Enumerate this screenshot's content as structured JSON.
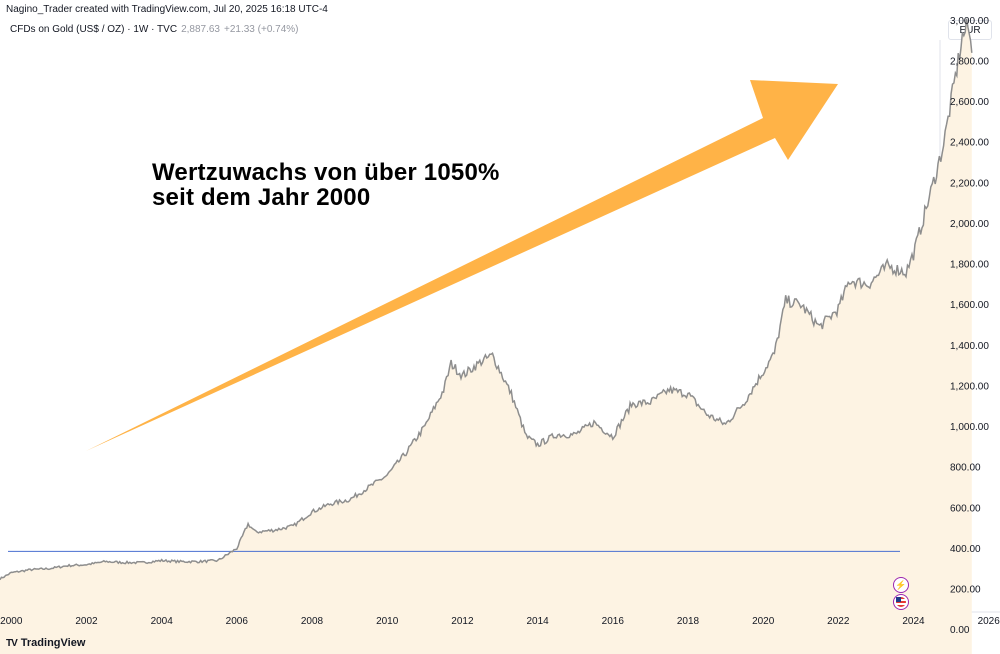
{
  "header": {
    "attribution": "Nagino_Trader created with TradingView.com, Jul 20, 2025 16:18 UTC-4",
    "symbol": "CFDs on Gold (US$ / OZ) · 1W · TVC",
    "price": "2,887.63",
    "change": "+21.33 (+0.74%)",
    "currency": "EUR"
  },
  "annotation": {
    "headline": "Wertzuwachs von über 1050%\nseit dem Jahr 2000"
  },
  "footer": {
    "brand": "TradingView",
    "logo": "TV"
  },
  "events": {
    "lightning_icon": "lightning-icon",
    "flag_icon": "us-flag-icon"
  },
  "colors": {
    "price_line": "#8e8e8e",
    "area_fill": "#fdf3e3",
    "reference_line": "#4a6fd1",
    "arrow": "#ffb347",
    "event_border": "#9c27b0"
  },
  "chart_data": {
    "type": "area",
    "title": "CFDs on Gold (US$ / OZ) · 1W · TVC",
    "xlabel": "",
    "ylabel": "",
    "xlim": [
      1999.7,
      2026.3
    ],
    "ylim": [
      -120,
      3100
    ],
    "x_ticks": [
      2000,
      2002,
      2004,
      2006,
      2008,
      2010,
      2012,
      2014,
      2016,
      2018,
      2020,
      2022,
      2024,
      2026
    ],
    "y_ticks": [
      "0.00",
      "200.00",
      "400.00",
      "600.00",
      "800.00",
      "1,000.00",
      "1,200.00",
      "1,400.00",
      "1,600.00",
      "1,800.00",
      "2,000.00",
      "2,200.00",
      "2,400.00",
      "2,600.00",
      "2,800.00",
      "3,000.00"
    ],
    "grid": false,
    "reference_line": {
      "value": 385
    },
    "series": [
      {
        "name": "",
        "points": [
          [
            1999.7,
            250
          ],
          [
            2000.0,
            280
          ],
          [
            2000.5,
            295
          ],
          [
            2001.0,
            300
          ],
          [
            2001.5,
            315
          ],
          [
            2002.0,
            320
          ],
          [
            2002.5,
            335
          ],
          [
            2003.0,
            330
          ],
          [
            2003.5,
            330
          ],
          [
            2004.0,
            340
          ],
          [
            2004.5,
            335
          ],
          [
            2005.0,
            335
          ],
          [
            2005.5,
            340
          ],
          [
            2006.0,
            400
          ],
          [
            2006.3,
            520
          ],
          [
            2006.5,
            480
          ],
          [
            2007.0,
            490
          ],
          [
            2007.5,
            510
          ],
          [
            2008.0,
            580
          ],
          [
            2008.5,
            620
          ],
          [
            2009.0,
            640
          ],
          [
            2009.5,
            700
          ],
          [
            2010.0,
            760
          ],
          [
            2010.5,
            870
          ],
          [
            2011.0,
            1000
          ],
          [
            2011.5,
            1180
          ],
          [
            2011.7,
            1310
          ],
          [
            2012.0,
            1250
          ],
          [
            2012.5,
            1320
          ],
          [
            2012.8,
            1350
          ],
          [
            2013.3,
            1160
          ],
          [
            2013.7,
            950
          ],
          [
            2014.0,
            910
          ],
          [
            2014.5,
            960
          ],
          [
            2015.0,
            960
          ],
          [
            2015.5,
            1020
          ],
          [
            2016.0,
            950
          ],
          [
            2016.5,
            1110
          ],
          [
            2017.0,
            1120
          ],
          [
            2017.5,
            1180
          ],
          [
            2018.0,
            1160
          ],
          [
            2018.5,
            1060
          ],
          [
            2019.0,
            1010
          ],
          [
            2019.5,
            1120
          ],
          [
            2020.0,
            1270
          ],
          [
            2020.3,
            1360
          ],
          [
            2020.6,
            1620
          ],
          [
            2021.0,
            1600
          ],
          [
            2021.5,
            1490
          ],
          [
            2022.0,
            1580
          ],
          [
            2022.3,
            1720
          ],
          [
            2022.8,
            1700
          ],
          [
            2023.3,
            1790
          ],
          [
            2023.8,
            1760
          ],
          [
            2024.0,
            1850
          ],
          [
            2024.3,
            2050
          ],
          [
            2024.5,
            2180
          ],
          [
            2024.8,
            2390
          ],
          [
            2025.0,
            2600
          ],
          [
            2025.3,
            2920
          ],
          [
            2025.45,
            2970
          ],
          [
            2025.55,
            2840
          ]
        ]
      }
    ]
  }
}
